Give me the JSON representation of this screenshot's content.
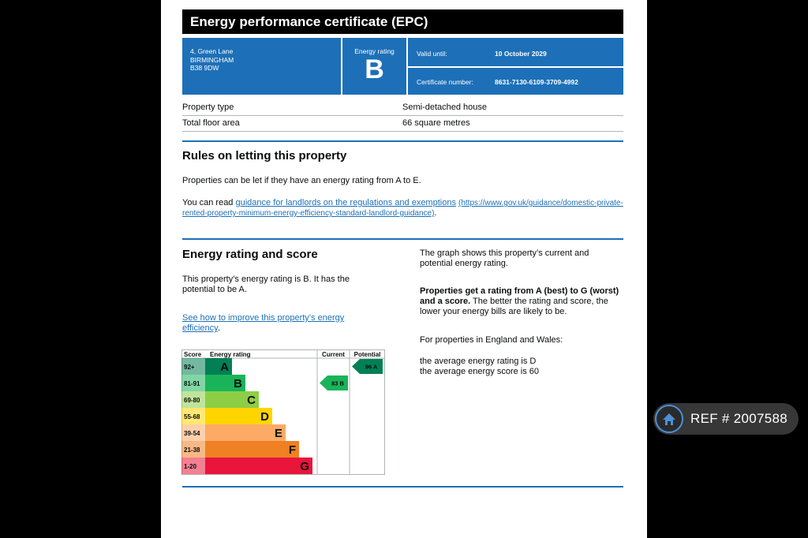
{
  "header": {
    "title": "Energy performance certificate (EPC)"
  },
  "address": {
    "line1": "4, Green Lane",
    "line2": "BIRMINGHAM",
    "line3": "B38 9DW"
  },
  "energy_rating": {
    "label": "Energy rating",
    "value": "B"
  },
  "validity": {
    "label": "Valid until:",
    "value": "10 October 2029"
  },
  "certificate": {
    "label": "Certificate number:",
    "value": "8631-7130-6109-3709-4992"
  },
  "property": [
    {
      "key": "Property type",
      "value": "Semi-detached house"
    },
    {
      "key": "Total floor area",
      "value": "66 square metres"
    }
  ],
  "letting": {
    "heading": "Rules on letting this property",
    "para1": "Properties can be let if they have an energy rating from A to E.",
    "para2_prefix": "You can read ",
    "para2_link": "guidance for landlords on the regulations and exemptions",
    "para2_url": "(https://www.gov.uk/guidance/domestic-private-rented-property-minimum-energy-efficiency-standard-landlord-guidance)",
    "para2_suffix": "."
  },
  "score_section": {
    "heading": "Energy rating and score",
    "para1": "This property’s energy rating is B. It has the potential to be A.",
    "improve_link": "See how to improve this property’s energy efficiency",
    "improve_suffix": ".",
    "right_para1": "The graph shows this property’s current and potential energy rating.",
    "right_bold": "Properties get a rating from A (best) to G (worst) and a score.",
    "right_rest": " The better the rating and score, the lower your energy bills are likely to be.",
    "right_para3": "For properties in England and Wales:",
    "right_para4a": "the average energy rating is D",
    "right_para4b": "the average energy score is 60"
  },
  "chart_data": {
    "type": "table",
    "headers": {
      "score": "Score",
      "rating": "Energy rating",
      "current": "Current",
      "potential": "Potential"
    },
    "bands": [
      {
        "score": "92+",
        "letter": "A",
        "color": "#008054"
      },
      {
        "score": "81-91",
        "letter": "B",
        "color": "#19b459"
      },
      {
        "score": "69-80",
        "letter": "C",
        "color": "#8dce46"
      },
      {
        "score": "55-68",
        "letter": "D",
        "color": "#ffd500"
      },
      {
        "score": "39-54",
        "letter": "E",
        "color": "#fcaa65"
      },
      {
        "score": "21-38",
        "letter": "F",
        "color": "#ef8023"
      },
      {
        "score": "1-20",
        "letter": "G",
        "color": "#e9153b"
      }
    ],
    "current": {
      "score": 83,
      "letter": "B",
      "label": "83  B",
      "color": "#19b459"
    },
    "potential": {
      "score": 96,
      "letter": "A",
      "label": "96  A",
      "color": "#008054"
    }
  },
  "ref_badge": {
    "text": "REF # 2007588",
    "icon": "home-icon"
  }
}
